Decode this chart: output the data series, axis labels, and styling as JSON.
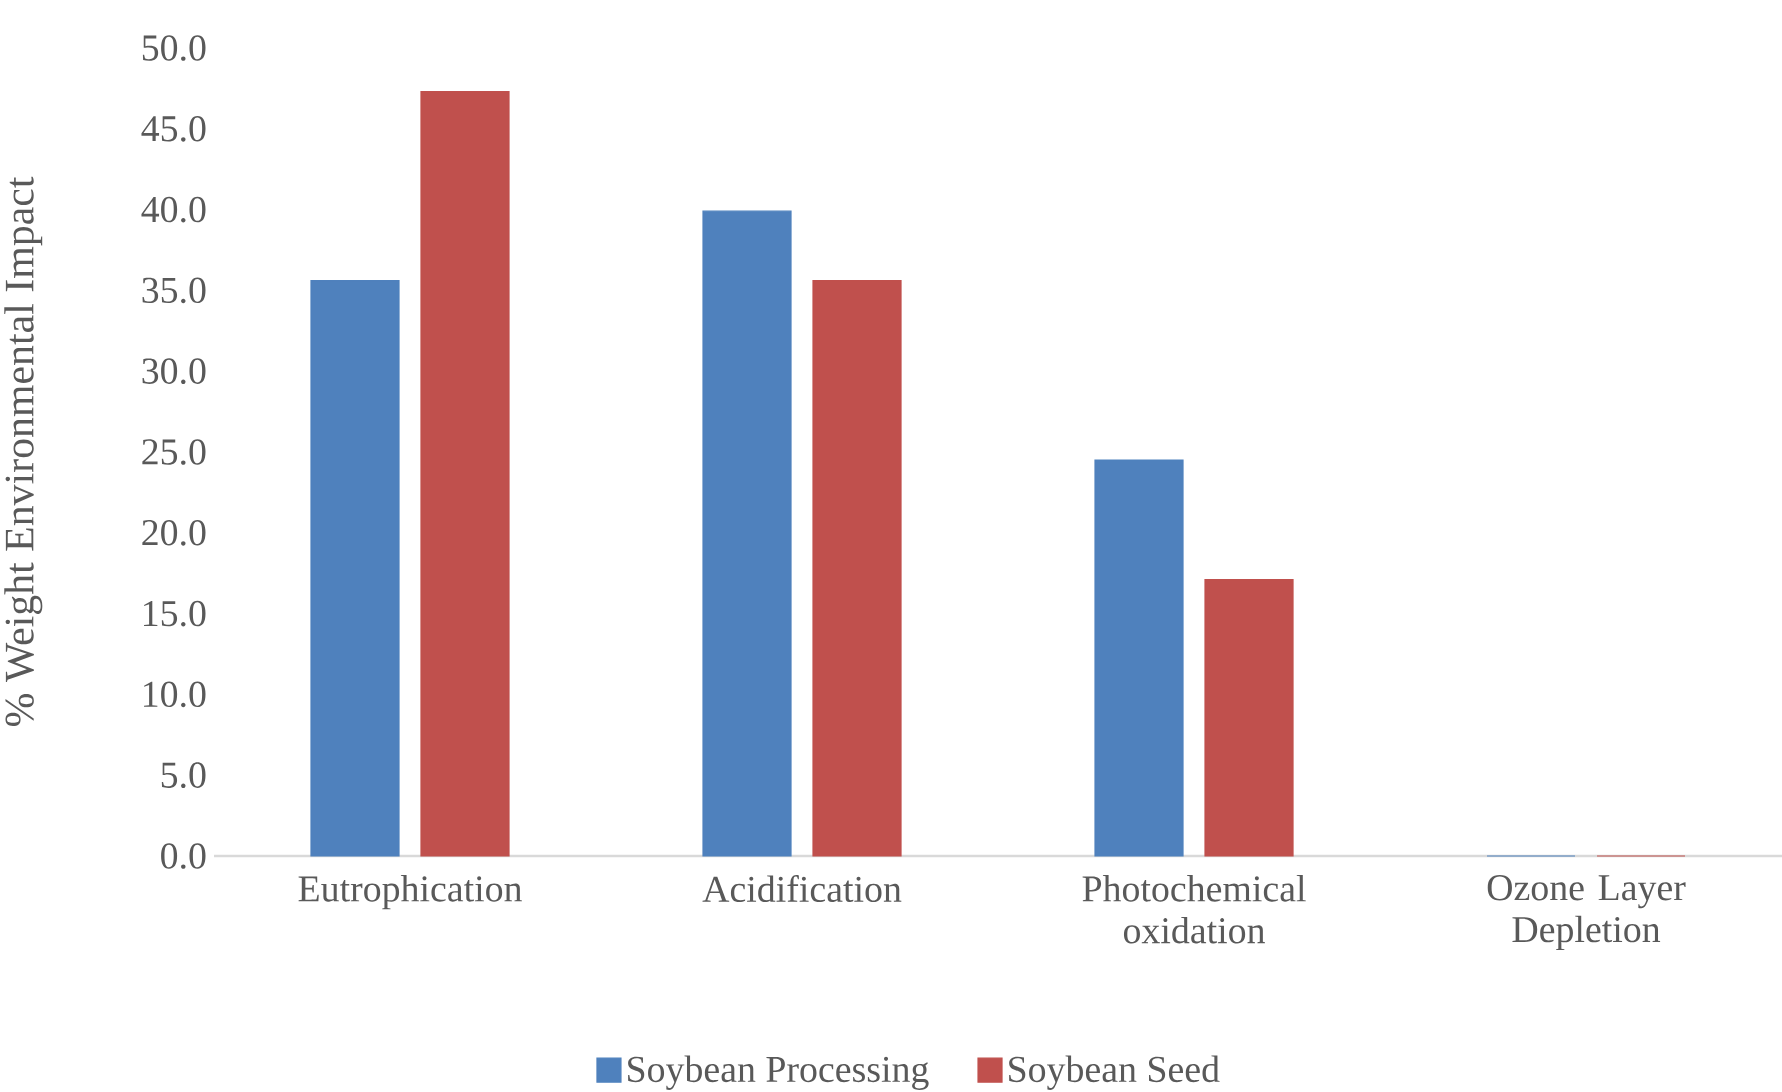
{
  "chart_data": {
    "type": "bar",
    "ylabel": "% Weight Environmental Impact",
    "categories": [
      "Eutrophication",
      "Acidification",
      "Photochemical oxidation",
      "Ozone Layer Depletion"
    ],
    "series": [
      {
        "name": "Soybean Processing",
        "color": "#4f81bd",
        "values": [
          35.6,
          39.9,
          24.5,
          0
        ]
      },
      {
        "name": "Soybean Seed",
        "color": "#c0504d",
        "values": [
          47.3,
          35.6,
          17.1,
          0
        ]
      }
    ],
    "ylim": [
      0,
      50
    ],
    "yticks": [
      {
        "value": 0,
        "label": "0.0"
      },
      {
        "value": 5,
        "label": "5.0"
      },
      {
        "value": 10,
        "label": "10.0"
      },
      {
        "value": 15,
        "label": "15.0"
      },
      {
        "value": 20,
        "label": "20.0"
      },
      {
        "value": 25,
        "label": "25.0"
      },
      {
        "value": 30,
        "label": "30.0"
      },
      {
        "value": 35,
        "label": "35.0"
      },
      {
        "value": 40,
        "label": "40.0"
      },
      {
        "value": 45,
        "label": "45.0"
      },
      {
        "value": 50,
        "label": "50.0"
      }
    ],
    "legend": "bottom"
  }
}
